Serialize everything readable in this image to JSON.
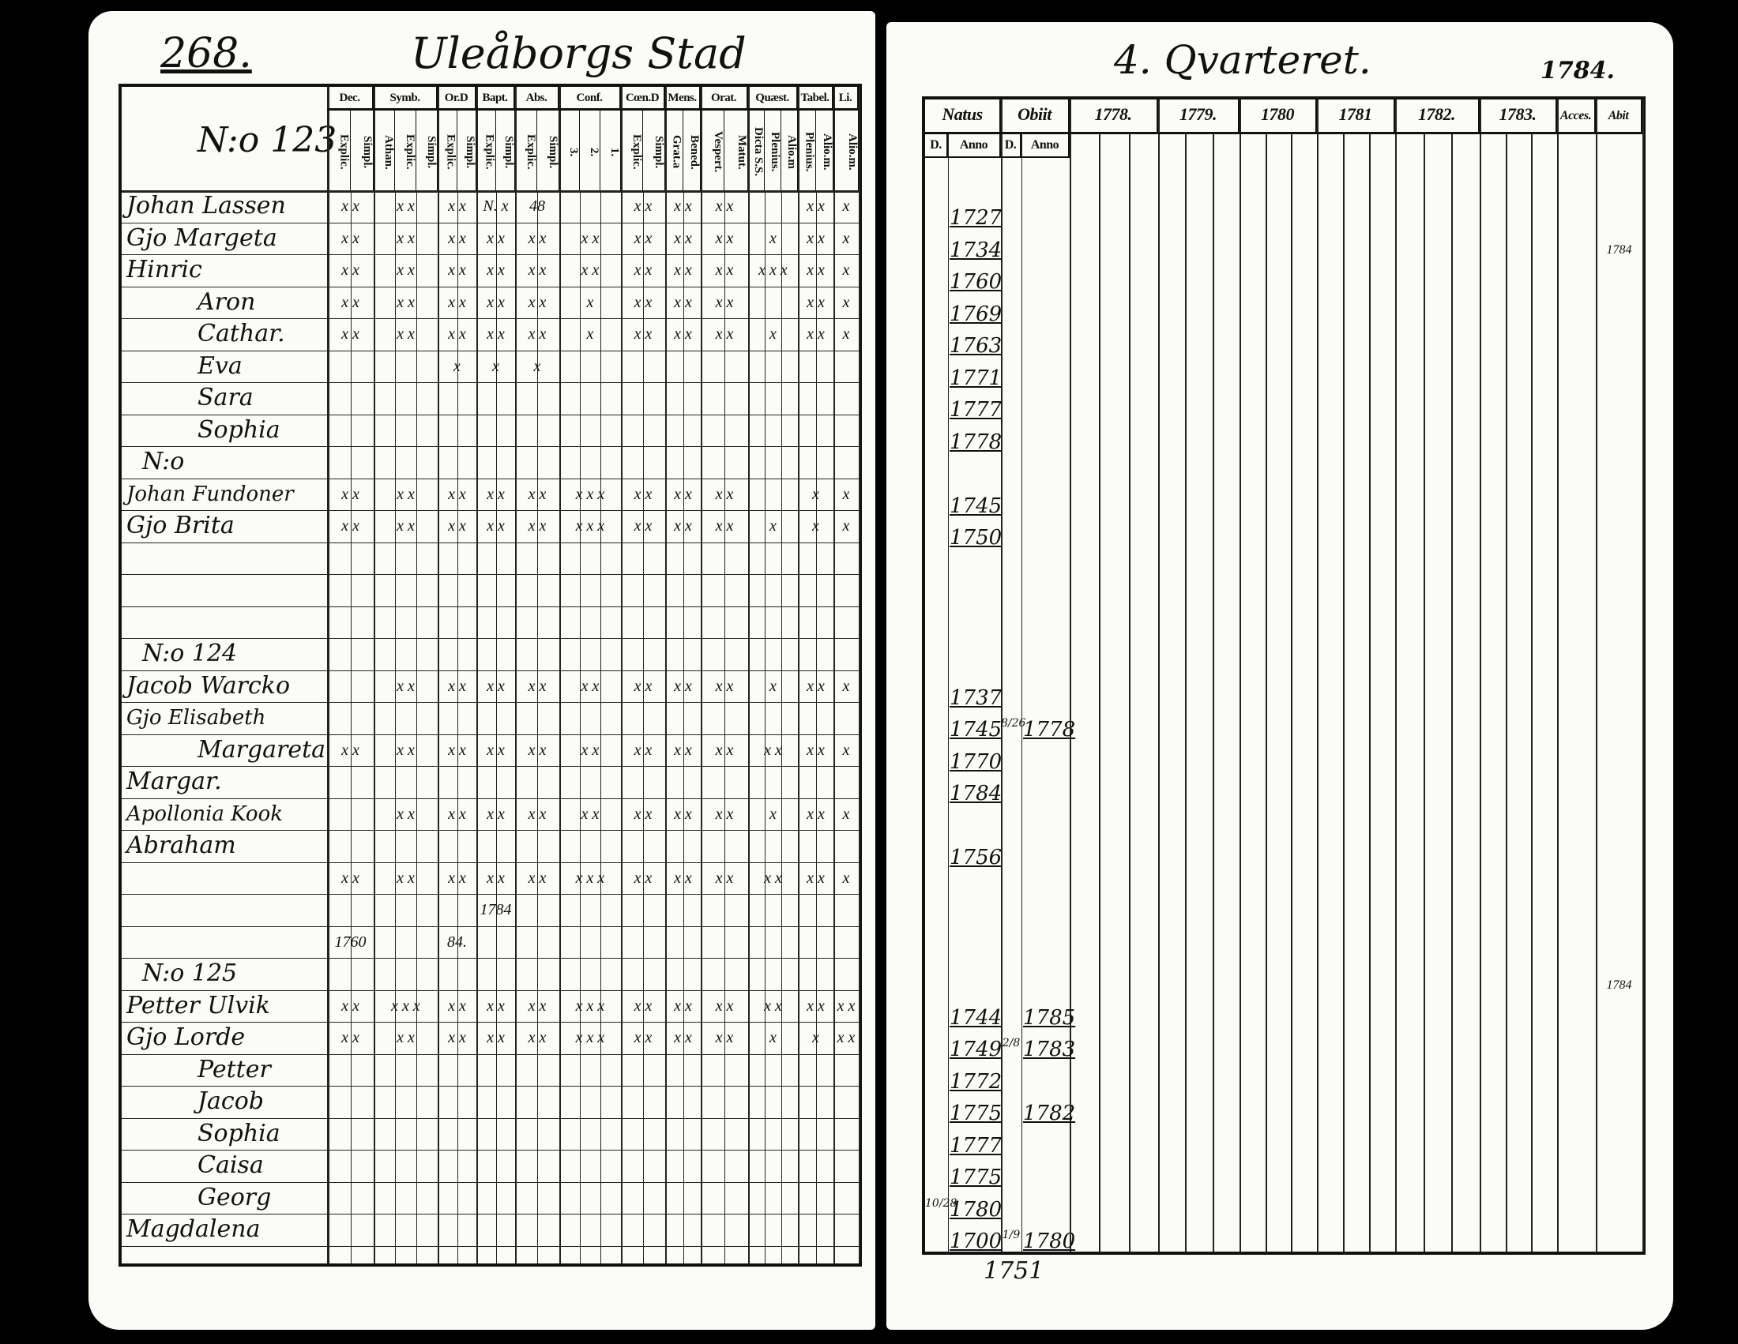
{
  "left_page": {
    "page_number": "268.",
    "title": "Uleåborgs Stad",
    "household_label_123": "N:o 123",
    "column_groups": [
      {
        "label": "Dec.",
        "subs": [
          "Explic.",
          "Simpl."
        ]
      },
      {
        "label": "Symb.",
        "subs": [
          "Athan.",
          "Explic.",
          "Simpl."
        ]
      },
      {
        "label": "Or.D",
        "subs": [
          "Explic.",
          "Simpl."
        ]
      },
      {
        "label": "Bapt.",
        "subs": [
          "Explic.",
          "Simpl."
        ]
      },
      {
        "label": "Abs.",
        "subs": [
          "Explic.",
          "Simpl."
        ]
      },
      {
        "label": "Conf.",
        "subs": [
          "3.",
          "2.",
          "1."
        ]
      },
      {
        "label": "Cœn.D",
        "subs": [
          "Explic.",
          "Simpl."
        ]
      },
      {
        "label": "Mens.",
        "subs": [
          "Grat.a",
          "Bened."
        ]
      },
      {
        "label": "Orat.",
        "subs": [
          "Vespert.",
          "Matut."
        ]
      },
      {
        "label": "Quæst.",
        "subs": [
          "Dicta S.S.",
          "Plenius.",
          "Alio.m"
        ]
      },
      {
        "label": "Tabel.",
        "subs": [
          "Plenius.",
          "Alio.m."
        ]
      },
      {
        "label": "Li.",
        "subs": [
          "Alio.m."
        ]
      }
    ],
    "rows": [
      {
        "name": "Johan Lassen",
        "marks": [
          "x x",
          "x x",
          "x x",
          "N. x",
          "48",
          "",
          "x x",
          "x x",
          "x x",
          "",
          "x x",
          "x"
        ]
      },
      {
        "name": "Gjo Margeta",
        "marks": [
          "x x",
          "x x",
          "x x",
          "x x",
          "x x",
          "x x",
          "x x",
          "x x",
          "x x",
          "x",
          "x x",
          "x"
        ]
      },
      {
        "name": "Hinric",
        "marks": [
          "x x",
          "x x",
          "x x",
          "x x",
          "x x",
          "x x",
          "x x",
          "x x",
          "x x",
          "x x x",
          "x x",
          "x"
        ]
      },
      {
        "name": "Aron",
        "marks": [
          "x x",
          "x x",
          "x x",
          "x x",
          "x x",
          "x",
          "x x",
          "x x",
          "x x",
          "",
          "x x",
          "x"
        ]
      },
      {
        "name": "Cathar.",
        "marks": [
          "x x",
          "x x",
          "x x",
          "x x",
          "x x",
          "x",
          "x x",
          "x x",
          "x x",
          "x",
          "x x",
          "x"
        ]
      },
      {
        "name": "Eva",
        "marks": [
          "",
          "",
          "x",
          "x",
          "x",
          "",
          "",
          "",
          "",
          "",
          "",
          ""
        ]
      },
      {
        "name": "Sara",
        "marks": []
      },
      {
        "name": "Sophia",
        "marks": []
      },
      {
        "name": "N:o",
        "marks": []
      },
      {
        "name": "Johan Fundoner",
        "marks": [
          "x x",
          "x x",
          "x x",
          "x x",
          "x x",
          "x x x",
          "x x",
          "x x",
          "x x",
          "",
          "x",
          "x"
        ]
      },
      {
        "name": "Gjo Brita",
        "marks": [
          "x x",
          "x x",
          "x x",
          "x x",
          "x x",
          "x x x",
          "x x",
          "x x",
          "x x",
          "x",
          "x",
          "x"
        ]
      },
      {
        "name": "",
        "marks": []
      },
      {
        "name": "",
        "marks": []
      },
      {
        "name": "",
        "marks": []
      },
      {
        "name": "N:o 124",
        "marks": []
      },
      {
        "name": "Jacob Warcko",
        "marks": [
          "",
          "x x",
          "x x",
          "x x",
          "x x",
          "x x",
          "x x",
          "x x",
          "x x",
          "x",
          "x x",
          "x"
        ]
      },
      {
        "name": "Gjo Elisabeth",
        "marks": []
      },
      {
        "name": "Margareta",
        "marks": [
          "x x",
          "x x",
          "x x",
          "x x",
          "x x",
          "x x",
          "x x",
          "x x",
          "x x",
          "x x",
          "x x",
          "x"
        ]
      },
      {
        "name": "Margar.",
        "marks": []
      },
      {
        "name": "Apollonia Kook",
        "marks": [
          "",
          "x x",
          "x x",
          "x x",
          "x x",
          "x x",
          "x x",
          "x x",
          "x x",
          "x",
          "x x",
          "x"
        ]
      },
      {
        "name": "Abraham",
        "marks": []
      },
      {
        "name": "",
        "marks": [
          "x x",
          "x x",
          "x x",
          "x x",
          "x x",
          "x x x",
          "x x",
          "x x",
          "x x",
          "x x",
          "x x",
          "x"
        ]
      },
      {
        "name": "",
        "marks": [
          "",
          "",
          "",
          "1784",
          "",
          "",
          "",
          "",
          "",
          "",
          "",
          ""
        ]
      },
      {
        "name": "",
        "marks": [
          "1760",
          "",
          "84.",
          "",
          "",
          "",
          "",
          "",
          "",
          "",
          "",
          ""
        ]
      },
      {
        "name": "N:o 125",
        "marks": []
      },
      {
        "name": "Petter Ulvik",
        "marks": [
          "x x",
          "x x x",
          "x x",
          "x x",
          "x x",
          "x x x",
          "x x",
          "x x",
          "x x",
          "x x",
          "x x",
          "x x"
        ]
      },
      {
        "name": "Gjo Lorde",
        "marks": [
          "x x",
          "x x",
          "x x",
          "x x",
          "x x",
          "x x x",
          "x x",
          "x x",
          "x x",
          "x",
          "x",
          "x x"
        ]
      },
      {
        "name": "Petter",
        "marks": []
      },
      {
        "name": "Jacob",
        "marks": []
      },
      {
        "name": "Sophia",
        "marks": []
      },
      {
        "name": "Caisa",
        "marks": []
      },
      {
        "name": "Georg",
        "marks": []
      },
      {
        "name": "Magdalena",
        "marks": []
      }
    ]
  },
  "right_page": {
    "title": "4. Qvarteret.",
    "year_note": "1784.",
    "headers": {
      "natus": "Natus",
      "obiit": "Obiit",
      "day": "D.",
      "anno": "Anno",
      "years": [
        "1778.",
        "1779.",
        "1780",
        "1781",
        "1782.",
        "1783."
      ],
      "accessit": "Acces.",
      "abiit": "Abit"
    },
    "rows": [
      {
        "natus_year": "1727"
      },
      {
        "natus_year": "1734",
        "abiit": "1784"
      },
      {
        "natus_year": "1760"
      },
      {
        "natus_year": "1769"
      },
      {
        "natus_year": "1763"
      },
      {
        "natus_year": "1771"
      },
      {
        "natus_year": "1777"
      },
      {
        "natus_year": "1778"
      },
      {},
      {
        "natus_year": "1745"
      },
      {
        "natus_year": "1750"
      },
      {},
      {},
      {},
      {},
      {
        "natus_year": "1737"
      },
      {
        "natus_year": "1745",
        "obiit_day": "8/26",
        "obiit_year": "1778"
      },
      {
        "natus_year": "1770"
      },
      {
        "natus_year": "1784"
      },
      {},
      {
        "natus_year": "1756"
      },
      {},
      {},
      {},
      {
        "abiit": "1784"
      },
      {
        "natus_year": "1744",
        "obiit_year": "1785"
      },
      {
        "natus_year": "1749",
        "obiit_day": "2/8",
        "obiit_year": "1783"
      },
      {
        "natus_year": "1772"
      },
      {
        "natus_year": "1775",
        "obiit_year": "1782"
      },
      {
        "natus_year": "1777"
      },
      {
        "natus_year": "1775"
      },
      {
        "natus_day": "10/28",
        "natus_year": "1780"
      },
      {
        "natus_year": "1700",
        "obiit_day": "1/9",
        "obiit_year": "1780"
      }
    ],
    "footer_year": "1751"
  }
}
